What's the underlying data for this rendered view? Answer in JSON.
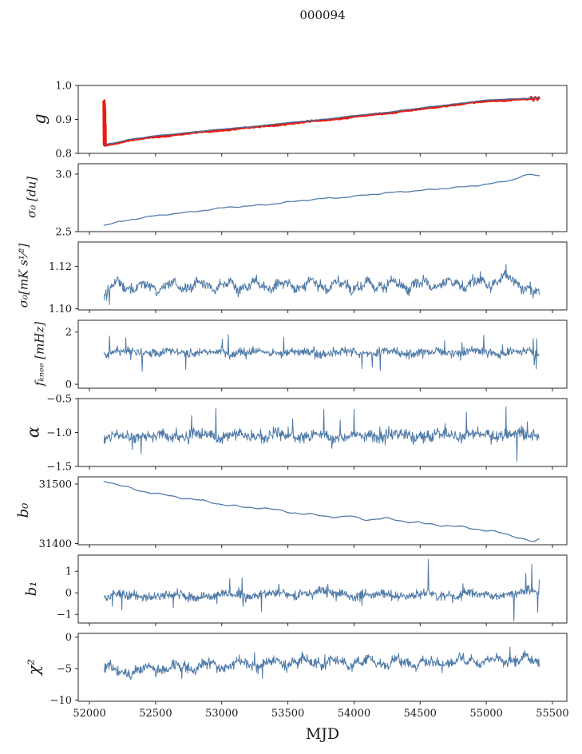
{
  "title": "000094",
  "xlabel": "MJD",
  "colors": {
    "accent_blue": "#4e79a8",
    "data_red": "#ea1a10",
    "fit_blue_gray": "#4a6a96",
    "axis": "#262626",
    "text": "#1a1a1a",
    "background": "#ffffff"
  },
  "axis": {
    "xlim": [
      51915,
      55609
    ],
    "x_ticks": [
      52000,
      52500,
      53000,
      53500,
      54000,
      54500,
      55000,
      55500
    ],
    "x_tick_labels": [
      "52000",
      "52500",
      "53000",
      "53500",
      "54000",
      "54500",
      "55000",
      "55500"
    ],
    "grid": "off",
    "legend": "none"
  },
  "chart_data": [
    {
      "type": "line",
      "ylabel": "g",
      "ylim": [
        0.8,
        1.0
      ],
      "ytick_vals": [
        0.8,
        0.9,
        1.0
      ],
      "ytick_labels": [
        "0.8",
        "0.9",
        "1.0"
      ],
      "series": [
        {
          "name": "gain-data",
          "color_key": "data_red",
          "width": 2.6,
          "n": 760,
          "x_start": 52125,
          "x_end": 55400,
          "noise": 0.0016,
          "seed": 11,
          "prefix_points": [
            [
              52106,
              0.953
            ],
            [
              52108,
              0.828
            ],
            [
              52110,
              0.95
            ],
            [
              52111,
              0.824
            ],
            [
              52113,
              0.956
            ],
            [
              52114,
              0.823
            ],
            [
              52116,
              0.946
            ],
            [
              52117,
              0.8225
            ],
            [
              52119,
              0.93
            ],
            [
              52120,
              0.823
            ],
            [
              52122,
              0.885
            ],
            [
              52123,
              0.8235
            ]
          ],
          "trend": [
            [
              52125,
              0.824
            ],
            [
              52300,
              0.838
            ],
            [
              52500,
              0.8485
            ],
            [
              52700,
              0.857
            ],
            [
              53000,
              0.868
            ],
            [
              53300,
              0.879
            ],
            [
              53600,
              0.891
            ],
            [
              53900,
              0.903
            ],
            [
              54200,
              0.9165
            ],
            [
              54500,
              0.93
            ],
            [
              54700,
              0.9405
            ],
            [
              54900,
              0.949
            ],
            [
              55000,
              0.9535
            ],
            [
              55100,
              0.956
            ],
            [
              55200,
              0.958
            ],
            [
              55300,
              0.9595
            ],
            [
              55400,
              0.961
            ]
          ],
          "wiggle": {
            "amp": 0.0008,
            "period": 420
          },
          "spikes": [
            [
              55340,
              0.9665
            ],
            [
              55355,
              0.955
            ],
            [
              55370,
              0.966
            ],
            [
              55385,
              0.957
            ],
            [
              55395,
              0.9655
            ]
          ]
        },
        {
          "name": "gain-fit",
          "color_key": "fit_blue_gray",
          "width": 1.4,
          "n": 320,
          "x_start": 52118,
          "x_end": 55400,
          "noise": 0.0004,
          "seed": 12,
          "offset": 0.0028,
          "trend": [
            [
              52125,
              0.824
            ],
            [
              52300,
              0.838
            ],
            [
              52500,
              0.8485
            ],
            [
              52700,
              0.857
            ],
            [
              53000,
              0.868
            ],
            [
              53300,
              0.879
            ],
            [
              53600,
              0.891
            ],
            [
              53900,
              0.903
            ],
            [
              54200,
              0.9165
            ],
            [
              54500,
              0.93
            ],
            [
              54700,
              0.9405
            ],
            [
              54900,
              0.949
            ],
            [
              55000,
              0.9535
            ],
            [
              55100,
              0.956
            ],
            [
              55200,
              0.958
            ],
            [
              55300,
              0.9595
            ],
            [
              55400,
              0.961
            ]
          ],
          "wiggle": {
            "amp": 0.0006,
            "period": 500
          }
        }
      ]
    },
    {
      "type": "line",
      "ylabel": "σ₀ [du]",
      "ylim": [
        2.5,
        3.09
      ],
      "ytick_vals": [
        2.5,
        3.0
      ],
      "ytick_labels": [
        "2.5",
        "3.0"
      ],
      "series": [
        {
          "name": "sigma0-du",
          "color_key": "accent_blue",
          "width": 1.2,
          "n": 820,
          "x_start": 52110,
          "x_end": 55400,
          "noise": 0.002,
          "seed": 21,
          "trend": [
            [
              52110,
              2.556
            ],
            [
              52200,
              2.578
            ],
            [
              52320,
              2.606
            ],
            [
              52450,
              2.63
            ],
            [
              52600,
              2.652
            ],
            [
              52750,
              2.668
            ],
            [
              52900,
              2.69
            ],
            [
              53050,
              2.712
            ],
            [
              53200,
              2.722
            ],
            [
              53350,
              2.736
            ],
            [
              53500,
              2.756
            ],
            [
              53650,
              2.776
            ],
            [
              53800,
              2.79
            ],
            [
              53950,
              2.8
            ],
            [
              54100,
              2.82
            ],
            [
              54250,
              2.836
            ],
            [
              54400,
              2.85
            ],
            [
              54550,
              2.862
            ],
            [
              54700,
              2.878
            ],
            [
              54850,
              2.89
            ],
            [
              55000,
              2.912
            ],
            [
              55100,
              2.928
            ],
            [
              55200,
              2.952
            ],
            [
              55280,
              2.986
            ],
            [
              55340,
              2.996
            ],
            [
              55400,
              2.985
            ]
          ],
          "wiggle": {
            "amp": 0.0035,
            "period": 260
          }
        }
      ]
    },
    {
      "type": "line",
      "ylabel": "σ₀[mK s¹⁄²]",
      "ylim": [
        1.0995,
        1.1315
      ],
      "ytick_vals": [
        1.1,
        1.12
      ],
      "ytick_labels": [
        "1.10",
        "1.12"
      ],
      "series": [
        {
          "name": "sigma0-mks",
          "color_key": "accent_blue",
          "width": 1.0,
          "n": 880,
          "x_start": 52110,
          "x_end": 55400,
          "noise": 0.0024,
          "seed": 31,
          "trend": [
            [
              52110,
              1.1065
            ],
            [
              52200,
              1.1115
            ],
            [
              52400,
              1.1105
            ],
            [
              52700,
              1.1105
            ],
            [
              53000,
              1.111
            ],
            [
              53400,
              1.1108
            ],
            [
              53800,
              1.1112
            ],
            [
              54200,
              1.111
            ],
            [
              54600,
              1.1118
            ],
            [
              54900,
              1.1122
            ],
            [
              55050,
              1.113
            ],
            [
              55180,
              1.1145
            ],
            [
              55260,
              1.112
            ],
            [
              55330,
              1.108
            ],
            [
              55400,
              1.1062
            ]
          ],
          "wiggle": {
            "amp": 0.0017,
            "period": 210
          },
          "spikes": [
            [
              55150,
              1.121
            ],
            [
              52150,
              1.102
            ],
            [
              52130,
              1.104
            ]
          ]
        }
      ]
    },
    {
      "type": "line",
      "ylabel": "fₖₙₑₑ [mHz]",
      "ylim": [
        -0.15,
        2.45
      ],
      "ytick_vals": [
        0,
        2
      ],
      "ytick_labels": [
        "0",
        "2"
      ],
      "series": [
        {
          "name": "f-knee",
          "color_key": "accent_blue",
          "width": 1.0,
          "n": 880,
          "x_start": 52110,
          "x_end": 55400,
          "noise": 0.16,
          "seed": 41,
          "trend": [
            [
              52110,
              1.22
            ],
            [
              55400,
              1.22
            ]
          ],
          "wiggle": {
            "amp": 0.05,
            "period": 330
          },
          "spike_prob": 0.03,
          "spike_amp": 0.45,
          "spikes": [
            [
              52150,
              1.85
            ],
            [
              53050,
              1.9
            ],
            [
              53470,
              1.8
            ],
            [
              54980,
              1.88
            ],
            [
              52400,
              0.5
            ],
            [
              54200,
              0.52
            ],
            [
              55380,
              1.75
            ]
          ]
        }
      ]
    },
    {
      "type": "line",
      "ylabel": "α",
      "ylim": [
        -1.5,
        -0.5
      ],
      "ytick_vals": [
        -1.5,
        -1.0,
        -0.5
      ],
      "ytick_labels": [
        "−1.5",
        "−1.0",
        "−0.5"
      ],
      "series": [
        {
          "name": "alpha",
          "color_key": "accent_blue",
          "width": 1.0,
          "n": 880,
          "x_start": 52110,
          "x_end": 55400,
          "noise": 0.085,
          "seed": 51,
          "trend": [
            [
              52110,
              -1.05
            ],
            [
              53000,
              -1.045
            ],
            [
              54000,
              -1.05
            ],
            [
              55000,
              -1.035
            ],
            [
              55400,
              -1.04
            ]
          ],
          "wiggle": {
            "amp": 0.025,
            "period": 300
          },
          "spike_prob": 0.02,
          "spike_amp": 0.22,
          "spikes": [
            [
              55150,
              -0.62
            ],
            [
              55230,
              -1.42
            ],
            [
              54850,
              -0.7
            ]
          ]
        }
      ]
    },
    {
      "type": "line",
      "ylabel": "b₀",
      "ylim": [
        31398,
        31512
      ],
      "ytick_vals": [
        31400,
        31500
      ],
      "ytick_labels": [
        "31400",
        "31500"
      ],
      "series": [
        {
          "name": "b0",
          "color_key": "accent_blue",
          "width": 1.2,
          "n": 820,
          "x_start": 52110,
          "x_end": 55400,
          "noise": 0.5,
          "seed": 61,
          "trend": [
            [
              52110,
              31506
            ],
            [
              52250,
              31496
            ],
            [
              52400,
              31488
            ],
            [
              52550,
              31482
            ],
            [
              52700,
              31477
            ],
            [
              52850,
              31472
            ],
            [
              53000,
              31466
            ],
            [
              53150,
              31461
            ],
            [
              53300,
              31460
            ],
            [
              53450,
              31455
            ],
            [
              53600,
              31450
            ],
            [
              53750,
              31447
            ],
            [
              53900,
              31444
            ],
            [
              53970,
              31446
            ],
            [
              54100,
              31440
            ],
            [
              54250,
              31442
            ],
            [
              54400,
              31437
            ],
            [
              54550,
              31433
            ],
            [
              54700,
              31430
            ],
            [
              54850,
              31427
            ],
            [
              55000,
              31422
            ],
            [
              55150,
              31416
            ],
            [
              55250,
              31410
            ],
            [
              55330,
              31404
            ],
            [
              55370,
              31403
            ],
            [
              55400,
              31407
            ]
          ],
          "wiggle": {
            "amp": 1.1,
            "period": 280
          }
        }
      ]
    },
    {
      "type": "line",
      "ylabel": "b₁",
      "ylim": [
        -1.4,
        1.75
      ],
      "ytick_vals": [
        -1,
        0,
        1
      ],
      "ytick_labels": [
        "−1",
        "0",
        "1"
      ],
      "series": [
        {
          "name": "b1",
          "color_key": "accent_blue",
          "width": 1.0,
          "n": 880,
          "x_start": 52110,
          "x_end": 55400,
          "noise": 0.2,
          "seed": 71,
          "trend": [
            [
              52110,
              -0.15
            ],
            [
              52600,
              -0.14
            ],
            [
              53200,
              -0.1
            ],
            [
              53700,
              -0.02
            ],
            [
              53850,
              0.02
            ],
            [
              54000,
              -0.12
            ],
            [
              54600,
              -0.1
            ],
            [
              55000,
              -0.08
            ],
            [
              55250,
              0.0
            ],
            [
              55400,
              0.05
            ]
          ],
          "wiggle": {
            "amp": 0.06,
            "period": 380
          },
          "spike_prob": 0.012,
          "spike_amp": 0.5,
          "spikes": [
            [
              52245,
              -0.8
            ],
            [
              52175,
              -0.62
            ],
            [
              54560,
              1.55
            ],
            [
              55210,
              -1.32
            ],
            [
              55300,
              0.9
            ],
            [
              55345,
              1.32
            ],
            [
              55390,
              -0.9
            ],
            [
              55400,
              0.6
            ]
          ]
        }
      ]
    },
    {
      "type": "line",
      "ylabel": "χ²",
      "ylim": [
        -10.2,
        0.6
      ],
      "ytick_vals": [
        -10,
        -5,
        0
      ],
      "ytick_labels": [
        "−10",
        "−5",
        "0"
      ],
      "series": [
        {
          "name": "chi2",
          "color_key": "accent_blue",
          "width": 1.0,
          "n": 880,
          "x_start": 52110,
          "x_end": 55400,
          "noise": 0.8,
          "seed": 81,
          "trend": [
            [
              52110,
              -4.6
            ],
            [
              52230,
              -5.7
            ],
            [
              52350,
              -5.3
            ],
            [
              52500,
              -5.0
            ],
            [
              52700,
              -4.8
            ],
            [
              53000,
              -4.5
            ],
            [
              53300,
              -4.2
            ],
            [
              53600,
              -4.0
            ],
            [
              53900,
              -4.1
            ],
            [
              54200,
              -4.0
            ],
            [
              54500,
              -4.2
            ],
            [
              54800,
              -3.9
            ],
            [
              55000,
              -3.8
            ],
            [
              55200,
              -3.6
            ],
            [
              55400,
              -3.9
            ]
          ],
          "wiggle": {
            "amp": 0.45,
            "period": 240
          },
          "spike_prob": 0.012,
          "spike_amp": 1.2
        }
      ]
    }
  ]
}
